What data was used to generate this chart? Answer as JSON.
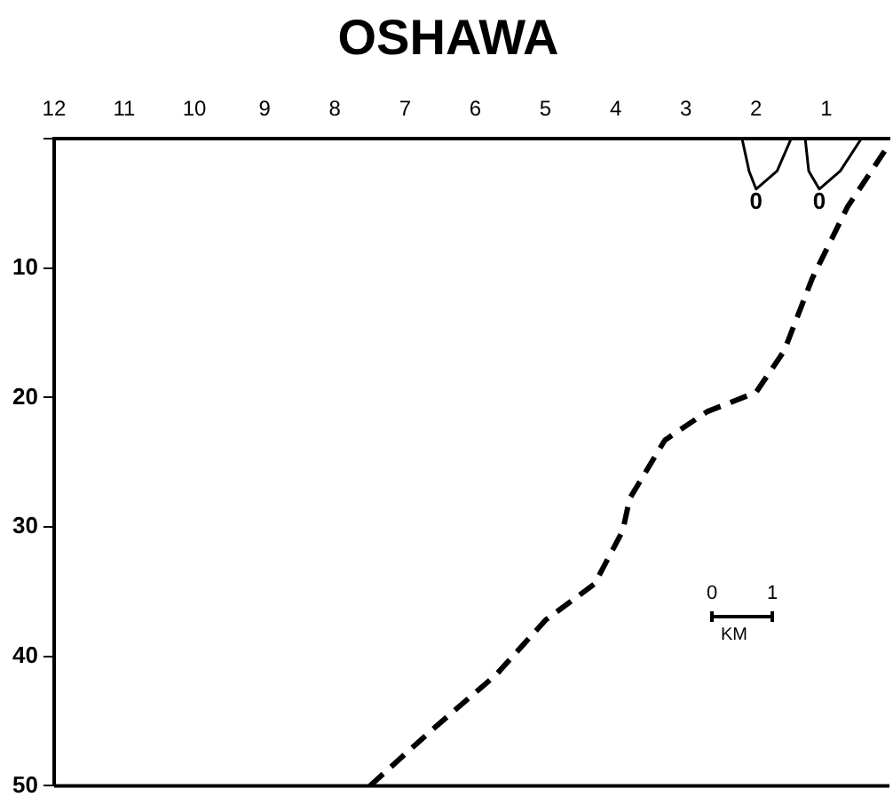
{
  "chart_data": {
    "type": "line",
    "title": "OSHAWA",
    "xlim": [
      12,
      0.1
    ],
    "xticks": [
      12,
      11,
      10,
      9,
      8,
      7,
      6,
      5,
      4,
      3,
      2,
      1
    ],
    "ylim": [
      50,
      0
    ],
    "yticks": [
      {
        "value": 0,
        "label": null
      },
      10,
      20,
      30,
      40,
      50
    ],
    "grid": false,
    "legend": false,
    "marker": "none",
    "series": [
      {
        "color": "#000000",
        "line_style": "dashed",
        "x": [
          7.5,
          6.6,
          5.7,
          5.0,
          4.3,
          3.9,
          3.8,
          3.3,
          2.7,
          2.0,
          1.6,
          1.2,
          0.7,
          0.1
        ],
        "values": [
          50,
          45.6,
          41.4,
          37.2,
          34.4,
          30.3,
          27.8,
          23.3,
          21.1,
          19.6,
          16.4,
          10.8,
          5.3,
          0.4
        ]
      },
      {
        "color": "#000000",
        "line_style": "solid",
        "x": [
          2.2,
          2.1,
          2.0,
          1.7,
          1.5
        ],
        "values": [
          0,
          2.5,
          3.9,
          2.5,
          0
        ]
      },
      {
        "color": "#000000",
        "line_style": "solid",
        "x": [
          1.3,
          1.25,
          1.1,
          0.8,
          0.5
        ],
        "values": [
          0,
          2.5,
          3.9,
          2.5,
          0
        ]
      }
    ],
    "annotations": [
      {
        "text": "0",
        "x": 2.0,
        "y": 3.9
      },
      {
        "text": "0",
        "x": 1.1,
        "y": 3.9
      },
      "0",
      "1",
      "KM"
    ]
  }
}
